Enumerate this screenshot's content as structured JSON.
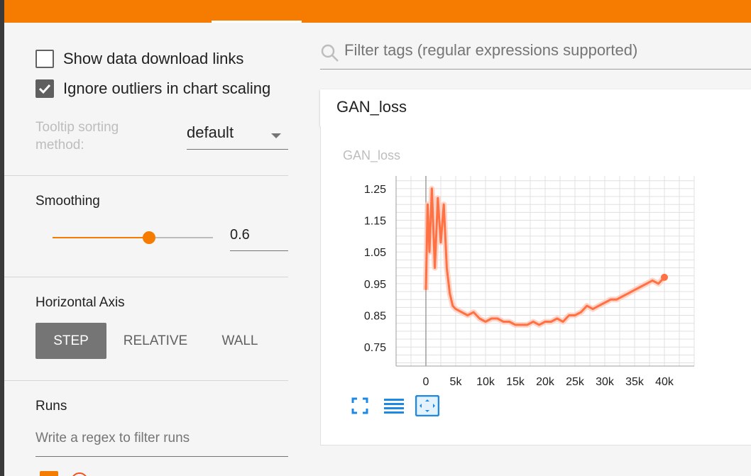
{
  "sidebar": {
    "show_download_links": {
      "label": "Show data download links",
      "checked": false
    },
    "ignore_outliers": {
      "label": "Ignore outliers in chart scaling",
      "checked": true
    },
    "tooltip_sorting": {
      "label": "Tooltip sorting method:",
      "value": "default"
    },
    "smoothing": {
      "title": "Smoothing",
      "value": "0.6",
      "fraction": 0.6
    },
    "horizontal_axis": {
      "title": "Horizontal Axis",
      "options": [
        "STEP",
        "RELATIVE",
        "WALL"
      ],
      "selected": "STEP"
    },
    "runs": {
      "title": "Runs",
      "filter_placeholder": "Write a regex to filter runs"
    }
  },
  "main": {
    "filter_placeholder": "Filter tags (regular expressions supported)",
    "card": {
      "header": "GAN_loss",
      "chart_title": "GAN_loss"
    }
  },
  "colors": {
    "accent": "#f57c00",
    "series": "#ff7043",
    "series_raw": "#ffccbc",
    "icon": "#1e88e5"
  },
  "icons": [
    "search-icon",
    "fullscreen-icon",
    "data-table-icon",
    "fit-domain-icon"
  ],
  "chart_data": {
    "type": "line",
    "title": "GAN_loss",
    "xlabel": "",
    "ylabel": "",
    "xlim": [
      -5000,
      45000
    ],
    "ylim": [
      0.69,
      1.29
    ],
    "xticks": [
      0,
      5000,
      10000,
      15000,
      20000,
      25000,
      30000,
      35000,
      40000
    ],
    "xtick_labels": [
      "0",
      "5k",
      "10k",
      "15k",
      "20k",
      "25k",
      "30k",
      "35k",
      "40k"
    ],
    "yticks": [
      0.75,
      0.85,
      0.95,
      1.05,
      1.15,
      1.25
    ],
    "ytick_labels": [
      "0.75",
      "0.85",
      "0.95",
      "1.05",
      "1.15",
      "1.25"
    ],
    "grid": true,
    "series": [
      {
        "x": [
          0,
          300,
          600,
          1000,
          1500,
          2000,
          2500,
          3000,
          3500,
          4000,
          4500,
          5000,
          6000,
          7000,
          8000,
          9000,
          10000,
          11000,
          12000,
          13000,
          14000,
          15000,
          16000,
          17000,
          18000,
          19000,
          20000,
          21000,
          22000,
          23000,
          24000,
          25000,
          26000,
          27000,
          28000,
          29000,
          30000,
          31000,
          32000,
          33000,
          34000,
          35000,
          36000,
          37000,
          38000,
          39000,
          40000
        ],
        "y": [
          0.93,
          1.2,
          1.05,
          1.25,
          1.0,
          1.22,
          1.08,
          1.2,
          1.0,
          0.92,
          0.88,
          0.87,
          0.86,
          0.85,
          0.86,
          0.84,
          0.83,
          0.84,
          0.84,
          0.83,
          0.83,
          0.82,
          0.82,
          0.82,
          0.83,
          0.82,
          0.83,
          0.83,
          0.84,
          0.83,
          0.85,
          0.85,
          0.86,
          0.88,
          0.87,
          0.88,
          0.89,
          0.9,
          0.9,
          0.91,
          0.92,
          0.93,
          0.94,
          0.95,
          0.96,
          0.95,
          0.97
        ]
      }
    ]
  }
}
